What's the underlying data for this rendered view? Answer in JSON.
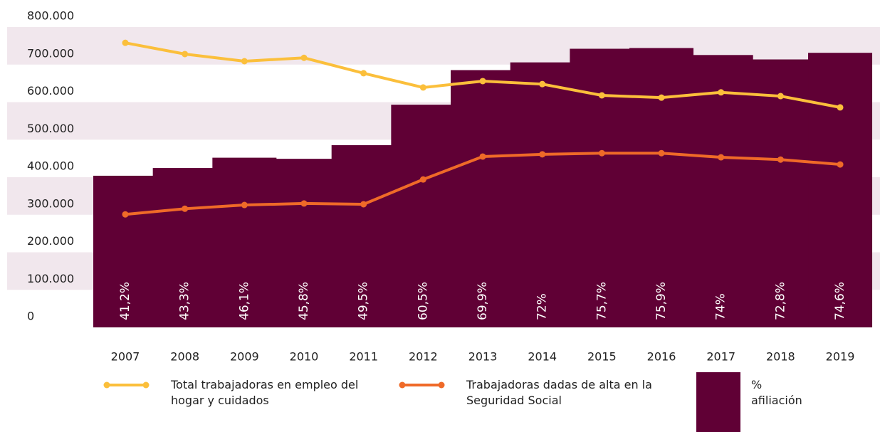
{
  "chart_data": {
    "type": "bar-line",
    "categories": [
      "2007",
      "2008",
      "2009",
      "2010",
      "2011",
      "2012",
      "2013",
      "2014",
      "2015",
      "2016",
      "2017",
      "2018",
      "2019"
    ],
    "series": [
      {
        "name": "Total trabajadoras en empleo del hogar y cuidados",
        "type": "line",
        "color": "#fbbf3b",
        "values": [
          758000,
          728000,
          709000,
          718000,
          677000,
          639000,
          656000,
          648000,
          618000,
          612000,
          626000,
          616000,
          586000
        ]
      },
      {
        "name": "Trabajadoras dadas de alta en la Seguridad Social",
        "type": "line",
        "color": "#ef6a28",
        "values": [
          301000,
          316000,
          326000,
          330000,
          328000,
          394000,
          455000,
          461000,
          464000,
          464000,
          453000,
          447000,
          434000
        ]
      },
      {
        "name": "% afiliación",
        "type": "bar",
        "color": "#600035",
        "axis": "y2",
        "values": [
          41.2,
          43.3,
          46.1,
          45.8,
          49.5,
          60.5,
          69.9,
          72,
          75.7,
          75.9,
          74,
          72.8,
          74.6
        ],
        "value_labels": [
          "41,2%",
          "43,3%",
          "46,1%",
          "45,8%",
          "49,5%",
          "60,5%",
          "69,9%",
          "72%",
          "75,7%",
          "75,9%",
          "74%",
          "72,8%",
          "74,6%"
        ]
      }
    ],
    "ylim": [
      0,
      800000
    ],
    "yticks": [
      0,
      {
        "value": 100000,
        "label": "100.000"
      },
      {
        "value": 200000,
        "label": "200.000"
      },
      {
        "value": 300000,
        "label": "300.000"
      },
      {
        "value": 400000,
        "label": "400.000"
      },
      {
        "value": 500000,
        "label": "500.000"
      },
      {
        "value": 600000,
        "label": "600.000"
      },
      {
        "value": 700000,
        "label": "700.000"
      },
      {
        "value": 800000,
        "label": "800.000"
      }
    ],
    "y2lim": [
      0,
      81.6
    ],
    "grid": true,
    "grid_color": "#f1e7ed"
  }
}
